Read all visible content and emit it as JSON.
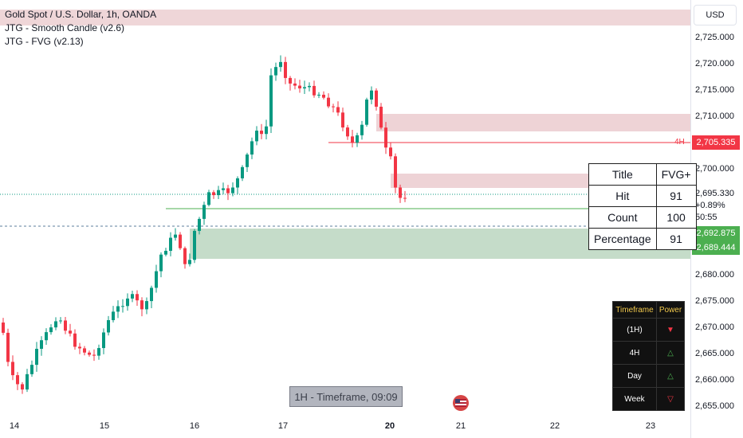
{
  "legend": {
    "symbol": "Gold Spot / U.S. Dollar, 1h, OANDA",
    "indicator1": "JTG - Smooth Candle (v2.6)",
    "indicator2": "JTG - FVG (v2.13)"
  },
  "price_axis": {
    "currency": "USD",
    "ticks": [
      "2,725.000",
      "2,720.000",
      "2,715.000",
      "2,710.000",
      "2,700.000",
      "2,680.000",
      "2,675.000",
      "2,670.000",
      "2,665.000",
      "2,660.000",
      "2,655.000"
    ],
    "tag_red": "2,705.335",
    "last_price": "2,695.330",
    "change": "+0.89%",
    "countdown": "50:55",
    "tag_green_1": "2,692.875",
    "tag_green_2": "2,689.444",
    "label_4h": "4H"
  },
  "date_axis": [
    "14",
    "15",
    "16",
    "17",
    "20",
    "21",
    "22",
    "23"
  ],
  "stats_table": {
    "rows": [
      [
        "Title",
        "FVG+"
      ],
      [
        "Hit",
        "91"
      ],
      [
        "Count",
        "100"
      ],
      [
        "Percentage",
        "91"
      ]
    ]
  },
  "power_table": {
    "headers": [
      "Timeframe",
      "Power"
    ],
    "rows": [
      {
        "tf": "(1H)",
        "signal": "▼"
      },
      {
        "tf": "4H",
        "signal": "△"
      },
      {
        "tf": "Day",
        "signal": "△"
      },
      {
        "tf": "Week",
        "signal": "▽"
      }
    ]
  },
  "timeframe_banner": "1H - Timeframe, 09:09",
  "colors": {
    "up": "#089981",
    "down": "#f23645",
    "fvg_bear": "#e8c4c8",
    "fvg_bull": "#b7d3bb",
    "power_border": "#f2c94c"
  },
  "icons": {
    "flag": "us-flag-icon"
  }
}
